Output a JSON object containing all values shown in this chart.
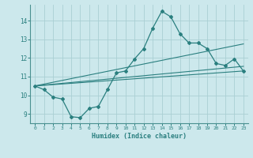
{
  "xlabel": "Humidex (Indice chaleur)",
  "ylabel": "",
  "bg_color": "#cce8ec",
  "grid_color": "#aacfd4",
  "line_color": "#2a7f7f",
  "xlim": [
    -0.5,
    23.5
  ],
  "ylim": [
    8.5,
    14.85
  ],
  "xticks": [
    0,
    1,
    2,
    3,
    4,
    5,
    6,
    7,
    8,
    9,
    10,
    11,
    12,
    13,
    14,
    15,
    16,
    17,
    18,
    19,
    20,
    21,
    22,
    23
  ],
  "yticks": [
    9,
    10,
    11,
    12,
    13,
    14
  ],
  "main_line_x": [
    0,
    1,
    2,
    3,
    4,
    5,
    6,
    7,
    8,
    9,
    10,
    11,
    12,
    13,
    14,
    15,
    16,
    17,
    18,
    19,
    20,
    21,
    22,
    23
  ],
  "main_line_y": [
    10.5,
    10.3,
    9.9,
    9.8,
    8.85,
    8.8,
    9.3,
    9.4,
    10.3,
    11.2,
    11.3,
    11.95,
    12.5,
    13.6,
    14.5,
    14.2,
    13.3,
    12.8,
    12.8,
    12.5,
    11.7,
    11.6,
    11.95,
    11.3
  ],
  "trend1_x": [
    0,
    23
  ],
  "trend1_y": [
    10.5,
    11.3
  ],
  "trend2_x": [
    0,
    23
  ],
  "trend2_y": [
    10.5,
    12.75
  ],
  "trend3_x": [
    0,
    23
  ],
  "trend3_y": [
    10.5,
    11.55
  ]
}
